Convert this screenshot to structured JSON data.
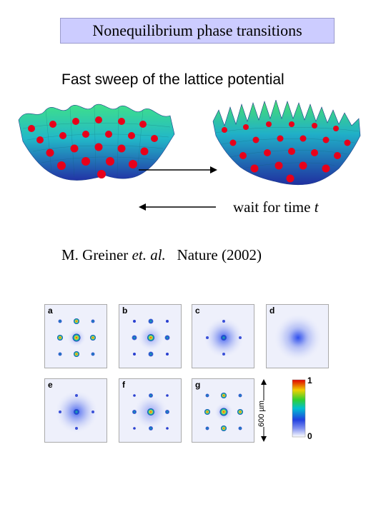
{
  "title": "Nonequilibrium phase transitions",
  "subtitle": "Fast sweep of the lattice potential",
  "wait_text": "wait for time ",
  "wait_var": "t",
  "citation": {
    "author": "M. Greiner ",
    "etal": "et. al.",
    "journal": "   Nature (2002)"
  },
  "panels": [
    {
      "label": "a"
    },
    {
      "label": "b"
    },
    {
      "label": "c"
    },
    {
      "label": "d"
    },
    {
      "label": "e"
    },
    {
      "label": "f"
    },
    {
      "label": "g"
    }
  ],
  "scale_bar": "600 µm",
  "colorbar": {
    "max": "1",
    "min": "0"
  },
  "colors": {
    "title_bg": "#ccccff",
    "atom": "#e8001a",
    "lattice_top": "#38d38a",
    "lattice_bottom": "#2438a8"
  }
}
